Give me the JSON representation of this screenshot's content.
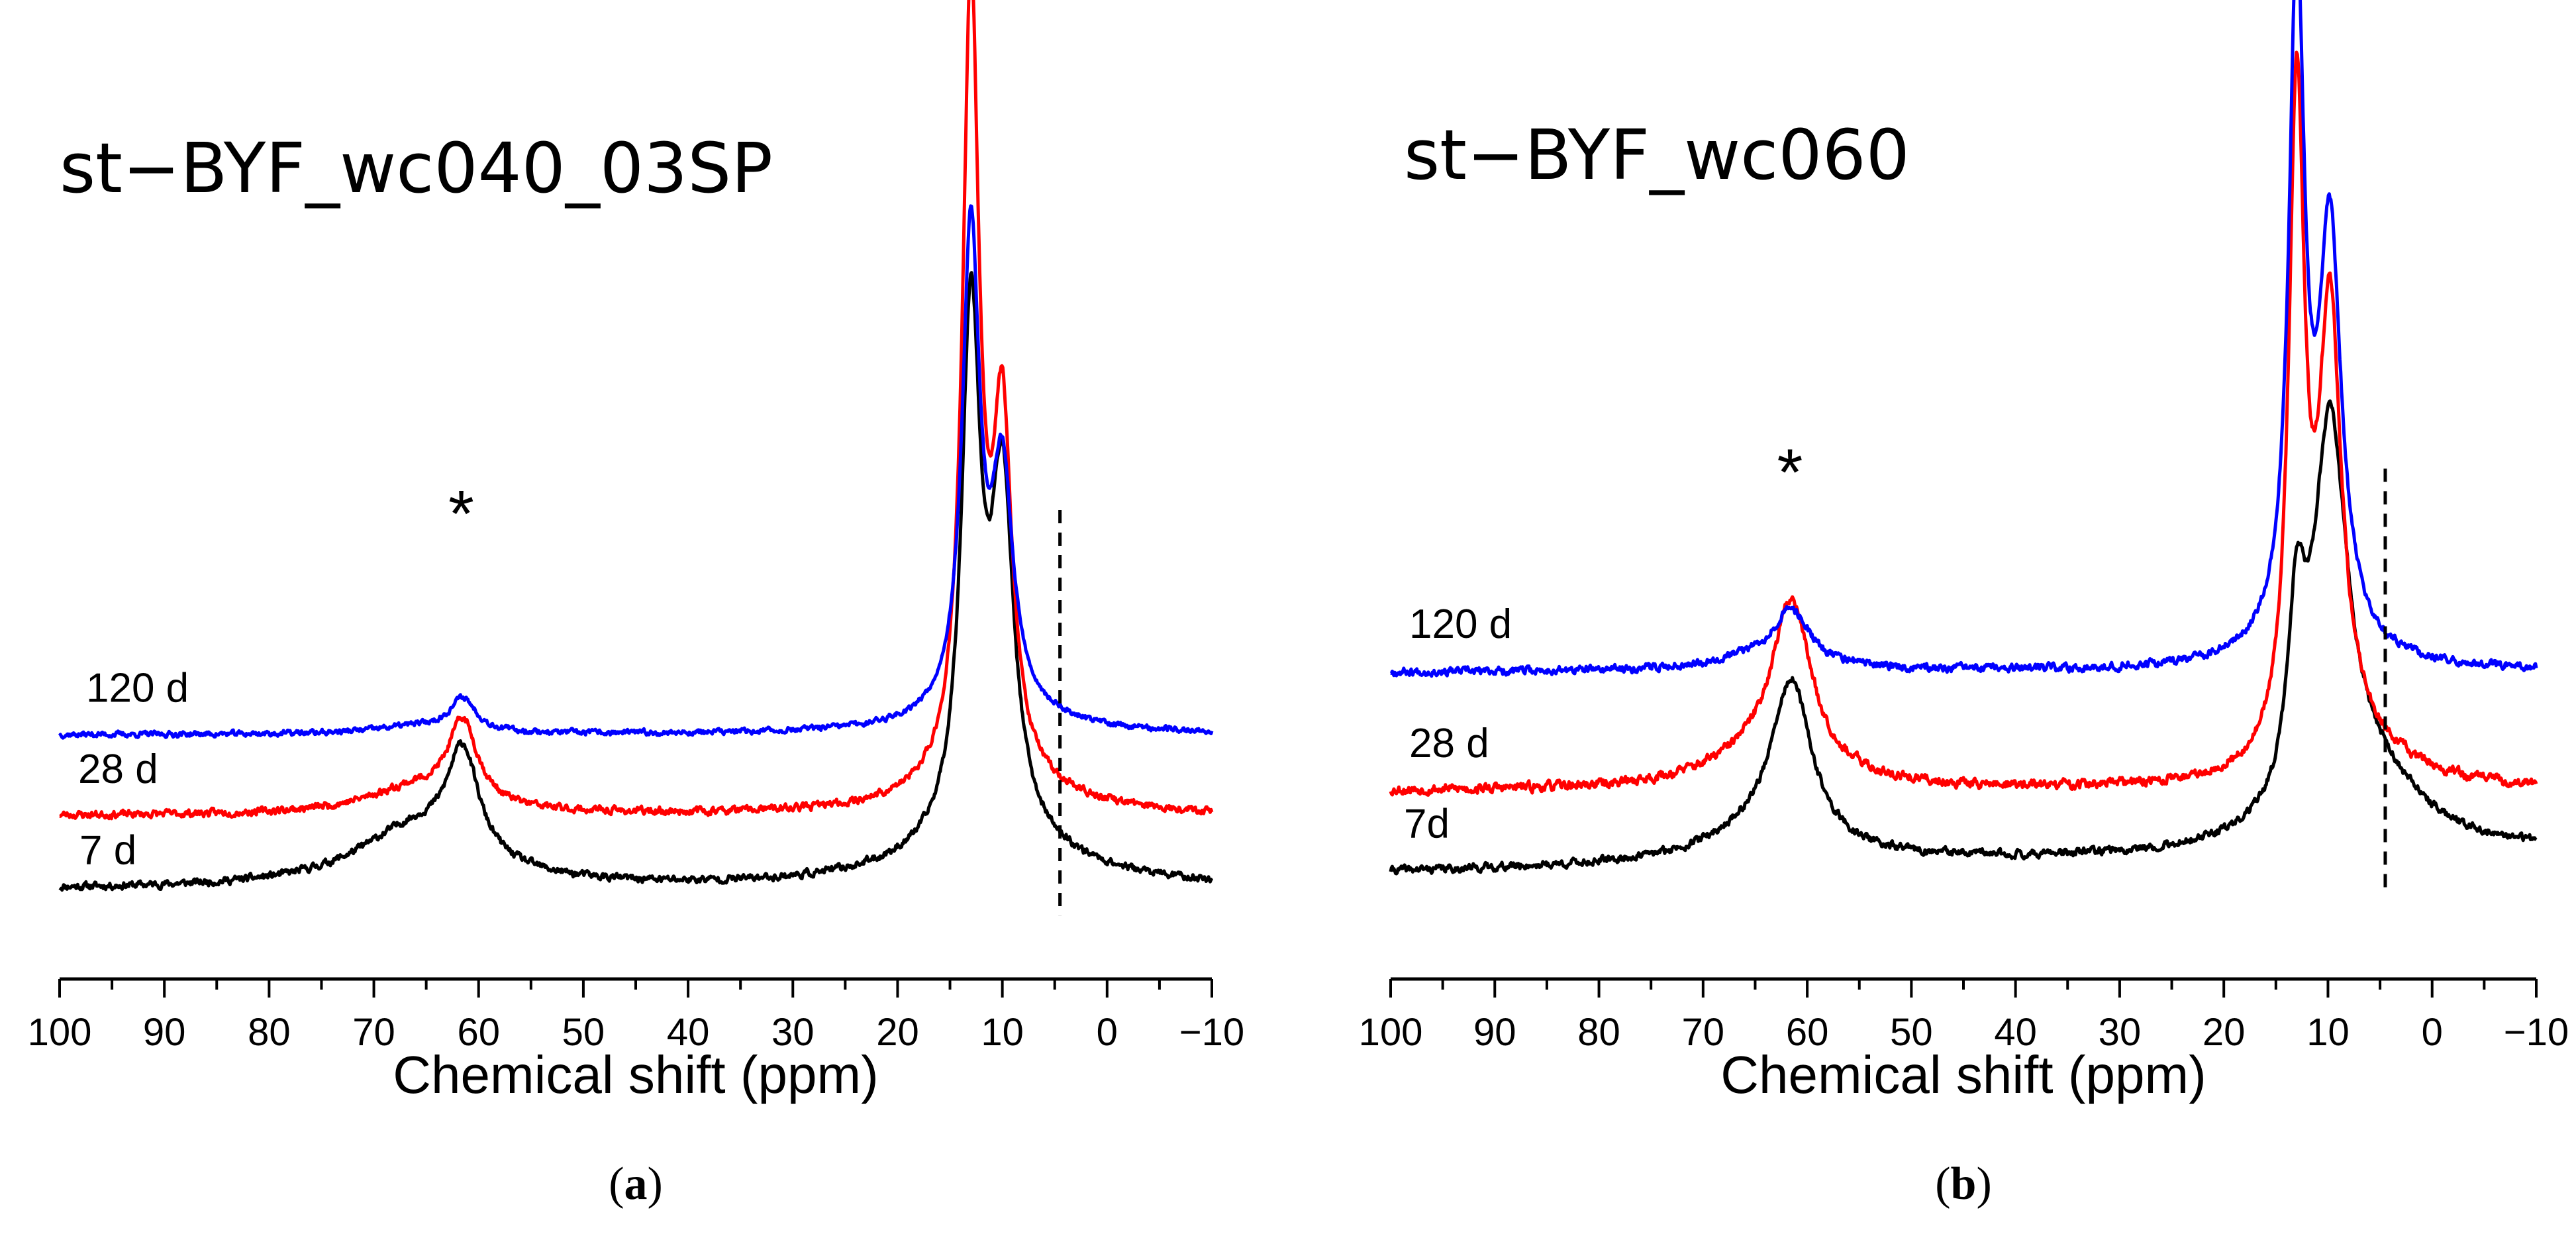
{
  "chart_data": [
    {
      "id": "a",
      "type": "line",
      "title": "st−BYF_wc040_03SP",
      "caption_letter": "a",
      "xlabel": "Chemical shift (ppm)",
      "ylabel": "",
      "xlim": [
        100,
        -10
      ],
      "xticks": [
        100,
        90,
        80,
        70,
        60,
        50,
        40,
        30,
        20,
        10,
        0,
        -10
      ],
      "xtick_labels": [
        "100",
        "90",
        "80",
        "70",
        "60",
        "50",
        "40",
        "30",
        "20",
        "10",
        "0",
        "−10"
      ],
      "ylim": [
        -0.1,
        2.2
      ],
      "reference_line_ppm": 4.5,
      "peak_marker": {
        "text": "*",
        "x": 61.5,
        "y": 1.05
      },
      "series": [
        {
          "name": "7 d",
          "color": "#000000",
          "offset": 0.0,
          "noise": 0.008,
          "seed": 11,
          "base": {
            "left": 0.02,
            "right": 0.02
          },
          "peaks": [
            {
              "x": 13,
              "h": 1.4,
              "w": 1.1
            },
            {
              "x": 10,
              "h": 0.92,
              "w": 1.3
            },
            {
              "x": 61.5,
              "h": 0.28,
              "w": 1.8
            },
            {
              "x": 66,
              "h": 0.16,
              "w": 7
            },
            {
              "x": 11,
              "h": 0.13,
              "w": 9
            }
          ]
        },
        {
          "name": "28 d",
          "color": "#ff0000",
          "offset": 0.22,
          "noise": 0.008,
          "seed": 23,
          "base": {
            "left": 0.0,
            "right": 0.0
          },
          "peaks": [
            {
              "x": 13,
              "h": 2.13,
              "w": 0.95
            },
            {
              "x": 10,
              "h": 0.93,
              "w": 1.1
            },
            {
              "x": 61.5,
              "h": 0.22,
              "w": 1.7
            },
            {
              "x": 66,
              "h": 0.07,
              "w": 6
            },
            {
              "x": 11,
              "h": 0.09,
              "w": 7
            }
          ]
        },
        {
          "name": "120 d",
          "color": "#0000ff",
          "offset": 0.44,
          "noise": 0.006,
          "seed": 37,
          "base": {
            "left": 0.0,
            "right": 0.0
          },
          "peaks": [
            {
              "x": 13,
              "h": 1.29,
              "w": 1.0
            },
            {
              "x": 10,
              "h": 0.62,
              "w": 1.2
            },
            {
              "x": 61.5,
              "h": 0.09,
              "w": 1.5
            },
            {
              "x": 66,
              "h": 0.02,
              "w": 5
            },
            {
              "x": 11,
              "h": 0.06,
              "w": 7
            }
          ]
        }
      ]
    },
    {
      "id": "b",
      "type": "line",
      "title": "st−BYF_wc060",
      "caption_letter": "b",
      "xlabel": "Chemical shift (ppm)",
      "ylabel": "",
      "xlim": [
        100,
        -10
      ],
      "xticks": [
        100,
        90,
        80,
        70,
        60,
        50,
        40,
        30,
        20,
        10,
        0,
        -10
      ],
      "xtick_labels": [
        "100",
        "90",
        "80",
        "70",
        "60",
        "50",
        "40",
        "30",
        "20",
        "10",
        "0",
        "−10"
      ],
      "ylim": [
        -0.1,
        2.2
      ],
      "reference_line_ppm": 4.5,
      "peak_marker": {
        "text": "*",
        "x": 61.5,
        "y": 1.05
      },
      "series": [
        {
          "name": "7d",
          "color": "#000000",
          "offset": 0.0,
          "noise": 0.008,
          "seed": 41,
          "base": {
            "left": 0.0,
            "right": 0.05
          },
          "peaks": [
            {
              "x": 13,
              "h": 0.45,
              "w": 1.0
            },
            {
              "x": 9.8,
              "h": 1.0,
              "w": 2.0
            },
            {
              "x": 61.5,
              "h": 0.41,
              "w": 2.3
            },
            {
              "x": 64,
              "h": 0.08,
              "w": 7
            },
            {
              "x": 6,
              "h": 0.18,
              "w": 6
            }
          ]
        },
        {
          "name": "28 d",
          "color": "#ff0000",
          "offset": 0.21,
          "noise": 0.01,
          "seed": 53,
          "base": {
            "left": 0.0,
            "right": 0.0
          },
          "peaks": [
            {
              "x": 13,
              "h": 1.7,
              "w": 0.9
            },
            {
              "x": 9.8,
              "h": 1.1,
              "w": 1.3
            },
            {
              "x": 61.5,
              "h": 0.43,
              "w": 2.3
            },
            {
              "x": 64,
              "h": 0.08,
              "w": 7
            },
            {
              "x": 8,
              "h": 0.12,
              "w": 6
            }
          ]
        },
        {
          "name": "120 d",
          "color": "#0000ff",
          "offset": 0.52,
          "noise": 0.008,
          "seed": 67,
          "base": {
            "left": 0.0,
            "right": 0.0
          },
          "peaks": [
            {
              "x": 13,
              "h": 1.72,
              "w": 0.9
            },
            {
              "x": 9.8,
              "h": 1.05,
              "w": 1.3
            },
            {
              "x": 61.5,
              "h": 0.13,
              "w": 2.0
            },
            {
              "x": 64,
              "h": 0.04,
              "w": 6
            },
            {
              "x": 11,
              "h": 0.06,
              "w": 7
            }
          ]
        }
      ]
    }
  ]
}
